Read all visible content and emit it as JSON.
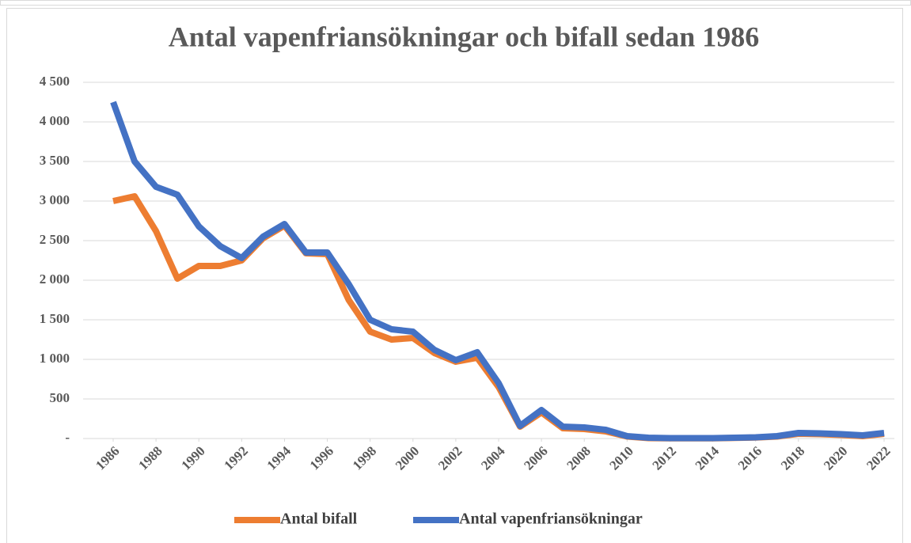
{
  "chart_data": {
    "type": "line",
    "title": "Antal vapenfriansökningar och bifall sedan 1986",
    "x": [
      1986,
      1987,
      1988,
      1989,
      1990,
      1991,
      1992,
      1993,
      1994,
      1995,
      1996,
      1997,
      1998,
      1999,
      2000,
      2001,
      2002,
      2003,
      2004,
      2005,
      2006,
      2007,
      2008,
      2009,
      2010,
      2011,
      2012,
      2013,
      2014,
      2015,
      2016,
      2017,
      2018,
      2019,
      2020,
      2021,
      2022
    ],
    "series": [
      {
        "name": "Antal bifall",
        "color": "#ed7d31",
        "values": [
          3000,
          3060,
          2620,
          2020,
          2180,
          2180,
          2250,
          2530,
          2690,
          2340,
          2330,
          1750,
          1350,
          1250,
          1270,
          1080,
          970,
          1020,
          650,
          150,
          330,
          130,
          120,
          90,
          25,
          5,
          3,
          3,
          3,
          8,
          12,
          25,
          60,
          55,
          45,
          30,
          60
        ]
      },
      {
        "name": "Antal vapenfriansökningar",
        "color": "#4472c4",
        "values": [
          4250,
          3500,
          3180,
          3080,
          2680,
          2430,
          2280,
          2550,
          2710,
          2350,
          2350,
          1950,
          1500,
          1380,
          1350,
          1120,
          990,
          1090,
          700,
          160,
          360,
          150,
          140,
          110,
          30,
          10,
          5,
          5,
          5,
          10,
          15,
          30,
          70,
          65,
          55,
          40,
          70
        ]
      }
    ],
    "xlim": [
      1986,
      2022
    ],
    "xticks": [
      1986,
      1988,
      1990,
      1992,
      1994,
      1996,
      1998,
      2000,
      2002,
      2004,
      2006,
      2008,
      2010,
      2012,
      2014,
      2016,
      2018,
      2020,
      2022
    ],
    "ylim": [
      0,
      4500
    ],
    "yticks": [
      {
        "value": 0,
        "label": "-"
      },
      {
        "value": 500,
        "label": "500"
      },
      {
        "value": 1000,
        "label": "1 000"
      },
      {
        "value": 1500,
        "label": "1 500"
      },
      {
        "value": 2000,
        "label": "2 000"
      },
      {
        "value": 2500,
        "label": "2 500"
      },
      {
        "value": 3000,
        "label": "3 000"
      },
      {
        "value": 3500,
        "label": "3 500"
      },
      {
        "value": 4000,
        "label": "4 000"
      },
      {
        "value": 4500,
        "label": "4 500"
      }
    ],
    "grid": true,
    "legend": "bottom"
  }
}
